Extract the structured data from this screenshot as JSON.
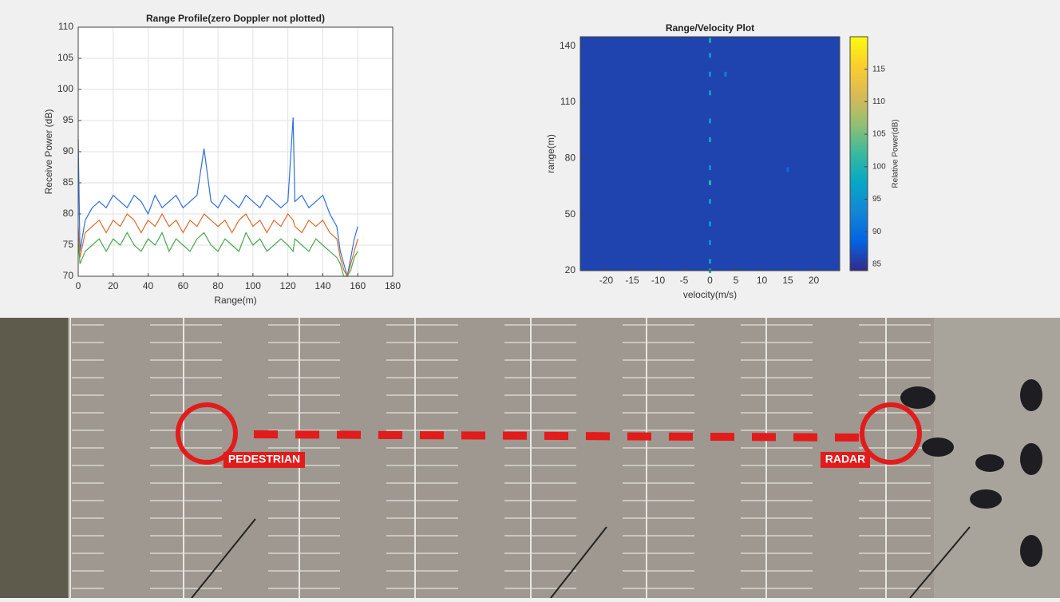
{
  "chart_data": [
    {
      "type": "line",
      "title": "Range Profile(zero Doppler not plotted)",
      "x_label": "Range(m)",
      "y_label": "Receive Power (dB)",
      "x": [
        0,
        1,
        4,
        8,
        12,
        16,
        20,
        24,
        28,
        32,
        36,
        40,
        44,
        48,
        52,
        56,
        60,
        64,
        68,
        72,
        76,
        80,
        84,
        88,
        92,
        96,
        100,
        104,
        108,
        112,
        116,
        120,
        123,
        124,
        128,
        132,
        136,
        140,
        144,
        148,
        150,
        152,
        154,
        156,
        158,
        160
      ],
      "series": [
        {
          "color": "#2f6fd6",
          "values": [
            92,
            74,
            79,
            81,
            82,
            81,
            83,
            82,
            81,
            83,
            82,
            80,
            83,
            81,
            82,
            83,
            81,
            82,
            83,
            90.5,
            82,
            81,
            83,
            82,
            81,
            83,
            82,
            81,
            83,
            82,
            81,
            82,
            95.5,
            82,
            83,
            81,
            82,
            83,
            80,
            78,
            74,
            72,
            70,
            73,
            76,
            78
          ]
        },
        {
          "color": "#e06a2a",
          "values": [
            78,
            73,
            77,
            78,
            79,
            77,
            79,
            78,
            80,
            79,
            77,
            79,
            78,
            80,
            78,
            79,
            77,
            79,
            78,
            80,
            79,
            78,
            79,
            77,
            79,
            80,
            78,
            79,
            77,
            79,
            78,
            80,
            79,
            78,
            77,
            79,
            78,
            79,
            77,
            76,
            73,
            71,
            70,
            72,
            74,
            76
          ]
        },
        {
          "color": "#48a84c",
          "values": [
            76,
            72,
            74,
            75,
            76,
            74,
            76,
            75,
            77,
            75,
            74,
            76,
            75,
            77,
            74,
            76,
            75,
            74,
            76,
            77,
            75,
            74,
            76,
            75,
            74,
            77,
            75,
            76,
            74,
            75,
            76,
            75,
            74,
            76,
            75,
            74,
            76,
            75,
            74,
            73,
            72,
            70,
            70,
            71,
            73,
            74
          ]
        }
      ],
      "xlim": [
        0,
        180
      ],
      "xticks": [
        0,
        20,
        40,
        60,
        80,
        100,
        120,
        140,
        160,
        180
      ],
      "ylim": [
        70,
        110
      ],
      "yticks": [
        70,
        75,
        80,
        85,
        90,
        95,
        100,
        105,
        110
      ],
      "grid": true
    },
    {
      "type": "heatmap",
      "title": "Range/Velocity Plot",
      "x_label": "velocity(m/s)",
      "y_label": "range(m)",
      "colorbar_label": "Relative Power(dB)",
      "background_value": 86,
      "x": [
        0,
        0,
        0,
        0,
        0,
        0,
        0,
        0,
        0,
        0,
        0,
        0,
        0,
        3,
        15
      ],
      "y": [
        20,
        25,
        35,
        45,
        57,
        67,
        75,
        90,
        100,
        115,
        125,
        135,
        143,
        125,
        74
      ],
      "values": [
        100,
        96,
        94,
        95,
        96,
        101,
        94,
        97,
        95,
        96,
        94,
        95,
        98,
        92,
        90
      ],
      "xlim": [
        -25,
        25
      ],
      "xticks": [
        -20,
        -15,
        -10,
        -5,
        0,
        5,
        10,
        15,
        20
      ],
      "ylim": [
        20,
        145
      ],
      "yticks": [
        20,
        50,
        80,
        110,
        140
      ],
      "clim": [
        84,
        120
      ],
      "cticks": [
        85,
        90,
        95,
        100,
        105,
        110,
        115
      ],
      "colormap": [
        "#352a87",
        "#0363e1",
        "#1485d4",
        "#06a7c6",
        "#38b99e",
        "#92bf73",
        "#d9ba56",
        "#fcce2e",
        "#f9fb0e"
      ]
    }
  ],
  "scene": {
    "labels": [
      "PEDESTRIAN",
      "RADAR"
    ]
  }
}
